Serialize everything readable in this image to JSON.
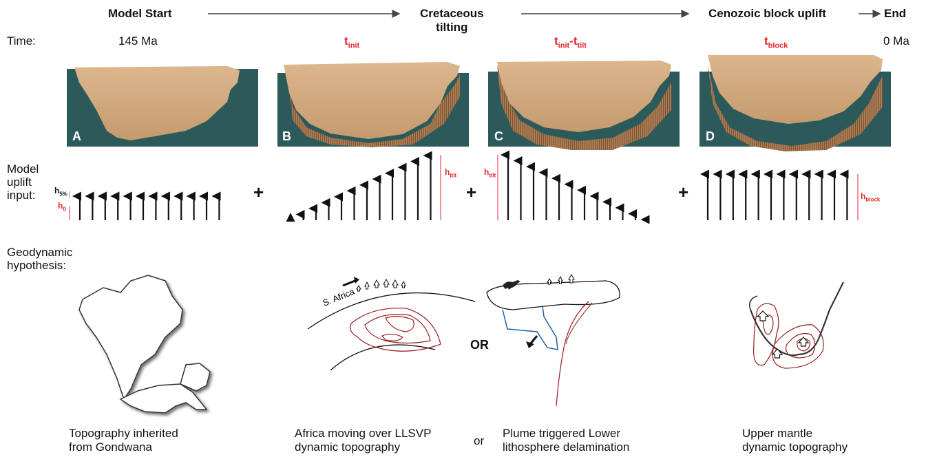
{
  "timeline": {
    "stage_start": "Model Start",
    "stage_cretaceous_line1": "Cretaceous",
    "stage_cretaceous_line2": "tilting",
    "stage_cenozoic": "Cenozoic block uplift",
    "stage_end": "End"
  },
  "time_row": {
    "label": "Time:",
    "start_value": "145 Ma",
    "t_init": "t",
    "t_init_sub": "init",
    "t_range_a": "t",
    "t_range_a_sub": "init",
    "t_range_dash": "-t",
    "t_range_b_sub": "tilt",
    "t_block": "t",
    "t_block_sub": "block",
    "end_value": "0 Ma"
  },
  "panels": {
    "a": "A",
    "b": "B",
    "c": "C",
    "d": "D"
  },
  "uplift_row": {
    "label_line1": "Model",
    "label_line2": "uplift",
    "label_line3": "input:",
    "h5_main": "h",
    "h5_sub": "5%",
    "h0_main": "h",
    "h0_sub": "0",
    "htilt_main": "h",
    "htilt_sub": "tilt",
    "htilt2_main": "h",
    "htilt2_sub": "tilt",
    "hblock_main": "h",
    "hblock_sub": "block",
    "plus": "+"
  },
  "geodynamic_row": {
    "label_line1": "Geodynamic",
    "label_line2": "hypothesis:",
    "s_africa": "S. Africa",
    "or_big": "OR",
    "or_small": "or"
  },
  "captions": {
    "gondwana_line1": "Topography inherited",
    "gondwana_line2": "from Gondwana",
    "llsvp_line1": "Africa moving over LLSVP",
    "llsvp_line2": "dynamic topography",
    "plume_line1": "Plume triggered Lower",
    "plume_line2": "lithosphere delamination",
    "mantle_line1": "Upper mantle",
    "mantle_line2": "dynamic topography"
  },
  "colors": {
    "ocean": "#2c5a5b",
    "land": "#cfa77c",
    "red": "#e4262b",
    "contour": "#9b1b1e",
    "blue": "#1f5fa8"
  }
}
